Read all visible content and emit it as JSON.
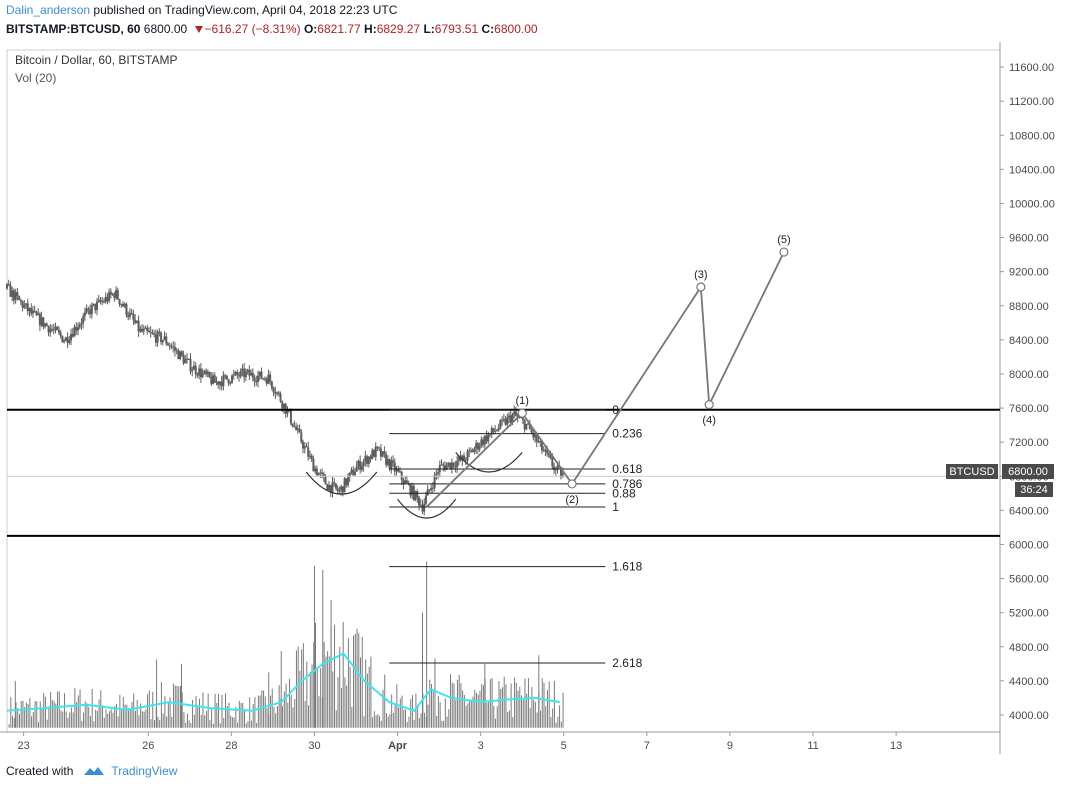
{
  "header": {
    "author": "Dalin_anderson",
    "published_text": "published on TradingView.com, April 04, 2018 22:23 UTC",
    "symbol": "BITSTAMP:BTCUSD, 60",
    "last": "6800.00",
    "change": "−616.27 (−8.31%)",
    "o_label": "O:",
    "o_value": "6821.77",
    "h_label": "H:",
    "h_value": "6829.27",
    "l_label": "L:",
    "l_value": "6793.51",
    "c_label": "C:",
    "c_value": "6800.00"
  },
  "legend": {
    "title": "Bitcoin / Dollar, 60, BITSTAMP",
    "volume": "Vol (20)"
  },
  "price_badge": {
    "symbol": "BTCUSD",
    "price": "6800.00",
    "countdown": "36:24"
  },
  "footer": {
    "created_with": "Created with",
    "brand": "TradingView"
  },
  "colors": {
    "candle": "#5d5d5d",
    "volume_bar": "#7a7a7a",
    "volume_ma": "#3de6ee",
    "annotation": "#444444",
    "author_link": "#3a8ed8",
    "negative": "#b22222",
    "badge": "#4a4a4a"
  },
  "chart_data": {
    "type": "candlestick",
    "interval": "60",
    "y_axis": {
      "ticks": [
        11600,
        11200,
        10800,
        10400,
        10000,
        9600,
        9200,
        8800,
        8400,
        8000,
        7600,
        7200,
        6800,
        6400,
        6000,
        5600,
        5200,
        4800,
        4400,
        4000
      ],
      "tick_labels": [
        "11600.00",
        "11200.00",
        "10800.00",
        "10400.00",
        "10000.00",
        "9600.00",
        "9200.00",
        "8800.00",
        "8400.00",
        "8000.00",
        "7600.00",
        "7200.00",
        "6800.00",
        "6400.00",
        "6000.00",
        "5600.00",
        "5200.00",
        "4800.00",
        "4400.00",
        "4000.00"
      ],
      "range": [
        3800,
        11800
      ]
    },
    "x_axis": {
      "tick_labels": [
        "23",
        "26",
        "28",
        "30",
        "Apr",
        "3",
        "5",
        "7",
        "9",
        "11",
        "13"
      ],
      "tick_days": [
        23,
        26,
        28,
        30,
        32,
        34,
        36,
        38,
        40,
        42,
        44
      ],
      "range_days": [
        22.6,
        46.5
      ],
      "note_days": "day numbers continue past March 31 (Apr = 32)"
    },
    "price_path": [
      [
        22.6,
        9000
      ],
      [
        23.2,
        8700
      ],
      [
        24.0,
        8400
      ],
      [
        24.6,
        8750
      ],
      [
        25.2,
        8950
      ],
      [
        25.8,
        8500
      ],
      [
        26.4,
        8400
      ],
      [
        27.0,
        8100
      ],
      [
        27.6,
        7900
      ],
      [
        28.3,
        8000
      ],
      [
        28.9,
        7950
      ],
      [
        29.3,
        7600
      ],
      [
        29.7,
        7200
      ],
      [
        30.0,
        6900
      ],
      [
        30.3,
        6700
      ],
      [
        30.6,
        6620
      ],
      [
        31.0,
        6900
      ],
      [
        31.5,
        7100
      ],
      [
        31.9,
        6900
      ],
      [
        32.3,
        6650
      ],
      [
        32.6,
        6450
      ],
      [
        33.0,
        6900
      ],
      [
        33.6,
        7000
      ],
      [
        34.0,
        7200
      ],
      [
        34.5,
        7400
      ],
      [
        34.8,
        7520
      ],
      [
        35.1,
        7400
      ],
      [
        35.5,
        7100
      ],
      [
        35.8,
        6880
      ],
      [
        36.0,
        6800
      ]
    ],
    "volume_ma": [
      [
        22.6,
        4050
      ],
      [
        23.5,
        4080
      ],
      [
        24.5,
        4120
      ],
      [
        25.5,
        4060
      ],
      [
        26.5,
        4150
      ],
      [
        27.5,
        4080
      ],
      [
        28.5,
        4050
      ],
      [
        29.2,
        4150
      ],
      [
        29.7,
        4400
      ],
      [
        30.2,
        4600
      ],
      [
        30.7,
        4720
      ],
      [
        31.2,
        4400
      ],
      [
        31.8,
        4150
      ],
      [
        32.4,
        4050
      ],
      [
        32.8,
        4300
      ],
      [
        33.3,
        4200
      ],
      [
        34.0,
        4150
      ],
      [
        34.6,
        4180
      ],
      [
        35.3,
        4200
      ],
      [
        35.9,
        4150
      ]
    ],
    "volume_spikes": [
      [
        30.0,
        5750
      ],
      [
        30.2,
        5700
      ],
      [
        30.4,
        5350
      ],
      [
        32.7,
        5800
      ],
      [
        32.6,
        5200
      ],
      [
        29.2,
        4750
      ],
      [
        26.8,
        4600
      ],
      [
        26.2,
        4650
      ],
      [
        28.9,
        4500
      ],
      [
        22.8,
        4400
      ],
      [
        35.4,
        4700
      ],
      [
        34.1,
        4600
      ]
    ],
    "horizontal_lines": [
      7580,
      6100
    ],
    "current_price_line": 6800,
    "fibonacci": {
      "levels": [
        {
          "ratio": 0,
          "label": "0",
          "price": 7580
        },
        {
          "ratio": 0.236,
          "label": "0.236",
          "price": 7300
        },
        {
          "ratio": 0.618,
          "label": "0.618",
          "price": 6885
        },
        {
          "ratio": 0.786,
          "label": "0.786",
          "price": 6710
        },
        {
          "ratio": 0.88,
          "label": "0.88",
          "price": 6600
        },
        {
          "ratio": 1,
          "label": "1",
          "price": 6440
        },
        {
          "ratio": 1.618,
          "label": "1.618",
          "price": 5740
        },
        {
          "ratio": 2.618,
          "label": "2.618",
          "price": 4610
        }
      ],
      "start_day": 31.8,
      "end_day": 37.0
    },
    "wave_points": [
      {
        "label": "(1)",
        "day": 35.0,
        "price": 7540
      },
      {
        "label": "(2)",
        "day": 36.2,
        "price": 6710
      },
      {
        "label": "(3)",
        "day": 39.3,
        "price": 9020
      },
      {
        "label": "(4)",
        "day": 39.5,
        "price": 7640
      },
      {
        "label": "(5)",
        "day": 41.3,
        "price": 9430
      }
    ],
    "wave_start": {
      "day": 32.7,
      "price": 6440
    },
    "arcs": [
      {
        "day_from": 29.8,
        "day_to": 31.5,
        "price": 6850,
        "depth": 260
      },
      {
        "day_from": 32.0,
        "day_to": 33.4,
        "price": 6530,
        "depth": 220
      },
      {
        "day_from": 33.4,
        "day_to": 35.0,
        "price": 7080,
        "depth": 230
      }
    ]
  }
}
